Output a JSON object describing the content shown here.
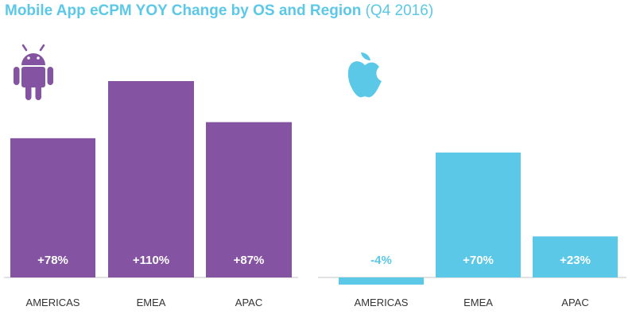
{
  "title": {
    "main": "Mobile App eCPM YOY Change by OS and Region",
    "sub": "(Q4 2016)",
    "color": "#5bc8e8"
  },
  "chart_data": [
    {
      "type": "bar",
      "series_name": "",
      "icon": "android-icon",
      "color": "#8453a1",
      "categories": [
        "AMERICAS",
        "EMEA",
        "APAC"
      ],
      "values": [
        78,
        110,
        87
      ],
      "labels": [
        "+78%",
        "+110%",
        "+87%"
      ],
      "ylim": [
        -10,
        145
      ]
    },
    {
      "type": "bar",
      "series_name": "",
      "icon": "apple-icon",
      "color": "#5bc8e8",
      "categories": [
        "AMERICAS",
        "EMEA",
        "APAC"
      ],
      "values": [
        -4,
        70,
        23
      ],
      "labels": [
        "-4%",
        "+70%",
        "+23%"
      ],
      "ylim": [
        -10,
        145
      ]
    }
  ]
}
